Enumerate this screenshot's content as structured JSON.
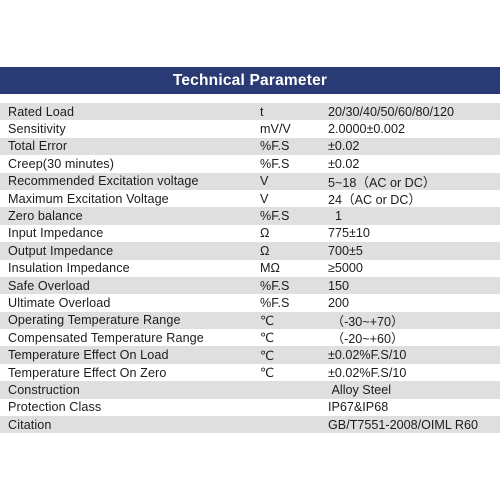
{
  "header": {
    "title": "Technical Parameter",
    "bg_color": "#2a3a75"
  },
  "rows": [
    {
      "parameter": "Rated Load",
      "unit": "t",
      "value": "20/30/40/50/60/80/120"
    },
    {
      "parameter": "Sensitivity",
      "unit": "mV/V",
      "value": "2.0000±0.002"
    },
    {
      "parameter": "Total Error",
      "unit": "%F.S",
      "value": "±0.02"
    },
    {
      "parameter": "Creep(30 minutes)",
      "unit": "%F.S",
      "value": "±0.02"
    },
    {
      "parameter": "Recommended Excitation voltage",
      "unit": "V",
      "value": "5~18（AC or DC）"
    },
    {
      "parameter": "Maximum Excitation Voltage",
      "unit": "V",
      "value": "24（AC or DC）"
    },
    {
      "parameter": "Zero balance",
      "unit": "%F.S",
      "value": "  1"
    },
    {
      "parameter": "Input Impedance",
      "unit": "Ω",
      "value": "775±10"
    },
    {
      "parameter": "Output Impedance",
      "unit": "Ω",
      "value": "700±5"
    },
    {
      "parameter": "Insulation Impedance",
      "unit": "MΩ",
      "value": "≥5000"
    },
    {
      "parameter": "Safe Overload",
      "unit": "%F.S",
      "value": "150"
    },
    {
      "parameter": "Ultimate Overload",
      "unit": "%F.S",
      "value": "200"
    },
    {
      "parameter": "Operating Temperature Range",
      "unit": "℃",
      "value": " （-30~+70）"
    },
    {
      "parameter": "Compensated Temperature Range",
      "unit": "℃",
      "value": " （-20~+60）"
    },
    {
      "parameter": "Temperature Effect On Load",
      "unit": "℃",
      "value": "±0.02%F.S/10"
    },
    {
      "parameter": "Temperature Effect On Zero",
      "unit": "℃",
      "value": "±0.02%F.S/10"
    },
    {
      "parameter": "Construction",
      "unit": "",
      "value": " Alloy Steel"
    },
    {
      "parameter": "Protection Class",
      "unit": "",
      "value": "IP67&IP68"
    },
    {
      "parameter": "Citation",
      "unit": "",
      "value": "GB/T7551-2008/OIML R60"
    }
  ]
}
